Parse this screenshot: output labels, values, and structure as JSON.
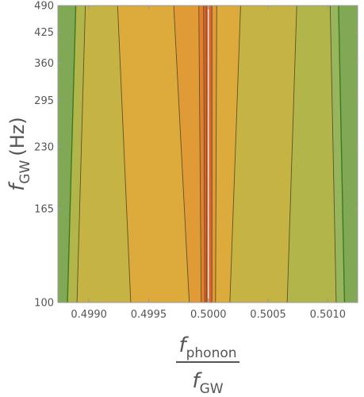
{
  "chart_data": {
    "type": "contour",
    "title": "",
    "xlabel": {
      "numerator": "f",
      "numerator_sub": "phonon",
      "denominator": "f",
      "denominator_sub": "GW"
    },
    "ylabel": {
      "main": "f",
      "sub": "GW",
      "unit": "(Hz)"
    },
    "x_ticks": [
      0.499,
      0.4995,
      0.5,
      0.5005,
      0.501
    ],
    "x_tick_labels": [
      "0.4990",
      "0.4995",
      "0.5000",
      "0.5005",
      "0.5010"
    ],
    "y_ticks": [
      100,
      165,
      230,
      295,
      360,
      425,
      490
    ],
    "y_tick_labels": [
      "100",
      "165",
      "230",
      "295",
      "360",
      "425",
      "490"
    ],
    "xlim": [
      0.49874,
      0.50125
    ],
    "ylim": [
      100,
      490
    ],
    "y_scale": "log",
    "grid": false,
    "legend": "none",
    "center_x": 0.5,
    "contour_lines": [
      {
        "level": 1,
        "bottom": -0.00118,
        "top": -0.00111
      },
      {
        "level": 2,
        "bottom": -0.0011,
        "top": -0.00103
      },
      {
        "level": 3,
        "bottom": -0.00065,
        "top": -0.00076
      },
      {
        "level": 4,
        "bottom": -0.00016,
        "top": -0.00029
      },
      {
        "level": 5,
        "bottom": -6e-05,
        "top": -8e-05
      },
      {
        "level": 6,
        "bottom": -3e-05,
        "top": -4e-05
      },
      {
        "level": 7,
        "bottom": -1.5e-05,
        "top": -1.8e-05
      },
      {
        "level": 6,
        "bottom": 3e-05,
        "top": 3e-05
      },
      {
        "level": 5,
        "bottom": 6e-05,
        "top": 7e-05
      },
      {
        "level": 4,
        "bottom": 0.00018,
        "top": 0.00027
      },
      {
        "level": 3,
        "bottom": 0.00066,
        "top": 0.00074
      },
      {
        "level": 2,
        "bottom": 0.00107,
        "top": 0.00102
      },
      {
        "level": 1,
        "bottom": 0.00114,
        "top": 0.00109
      }
    ],
    "colors": {
      "band_0": "#80a855",
      "band_1": "#97b55c",
      "band_2": "#b2b549",
      "band_3": "#c5b343",
      "band_4": "#dcab3c",
      "band_5": "#e09a36",
      "band_6": "#e38030",
      "band_7": "#e0622c",
      "edge_line": "#3d7a1e",
      "contour_line": "#5e5226",
      "axis": "#9a9a9a",
      "tick_text": "#555555"
    }
  }
}
